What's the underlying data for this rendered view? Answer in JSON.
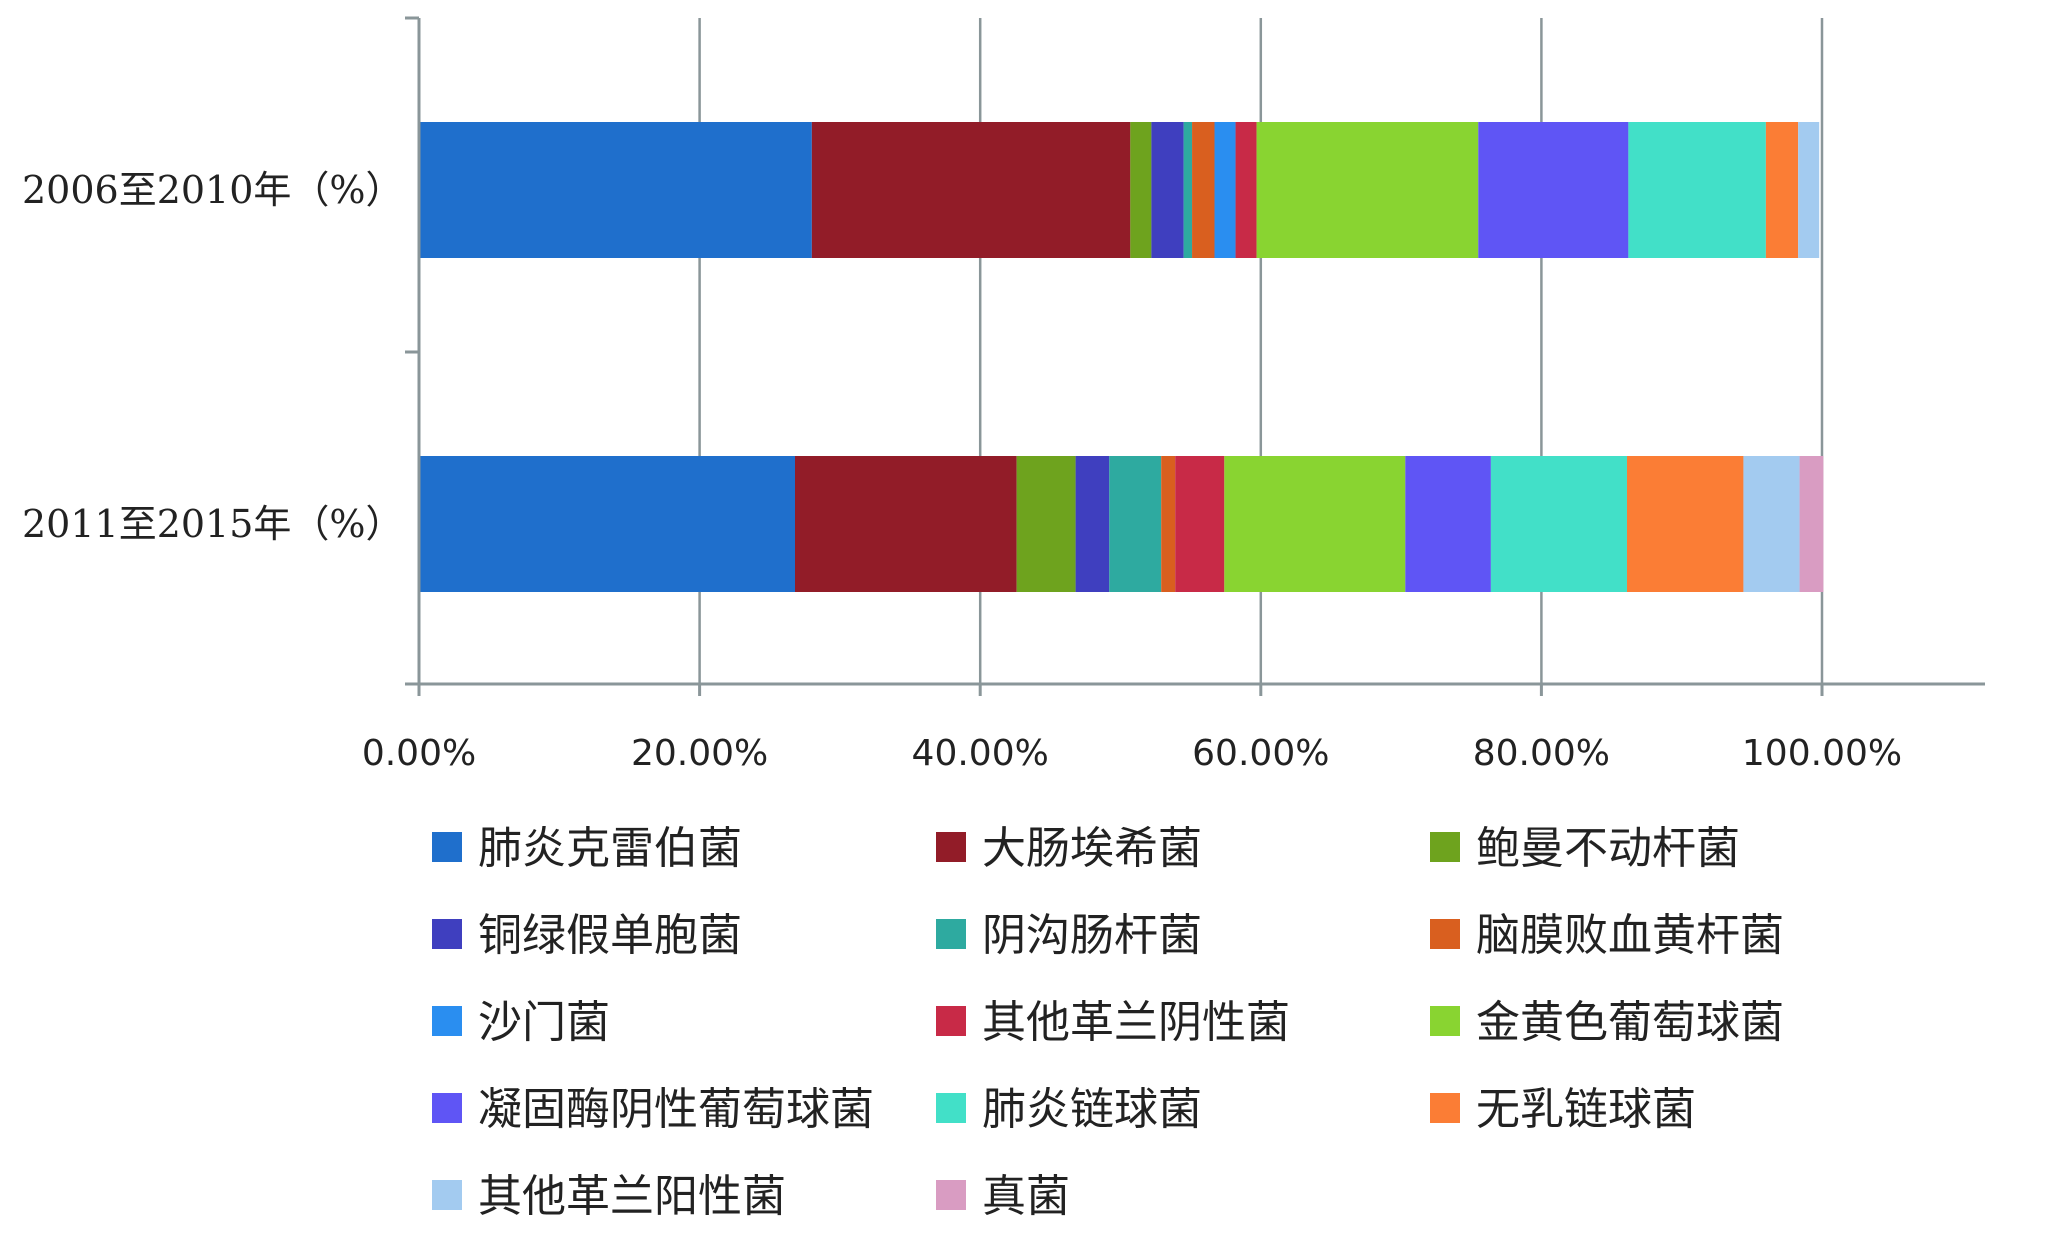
{
  "chart_data": {
    "type": "bar",
    "orientation": "horizontal",
    "stacked": "percent",
    "categories": [
      "2006至2010年（%）",
      "2011至2015年（%）"
    ],
    "xlim": [
      0,
      100
    ],
    "xticks": [
      "0.00%",
      "20.00%",
      "40.00%",
      "60.00%",
      "80.00%",
      "100.00%"
    ],
    "grid": "vertical",
    "legend_position": "bottom",
    "series": [
      {
        "name": "肺炎克雷伯菌",
        "color": "#1f6fcc",
        "values": [
          28.0,
          26.8
        ]
      },
      {
        "name": "大肠埃希菌",
        "color": "#921c28",
        "values": [
          22.7,
          15.8
        ]
      },
      {
        "name": "鲍曼不动杆菌",
        "color": "#6ea31e",
        "values": [
          1.5,
          4.2
        ]
      },
      {
        "name": "铜绿假单胞菌",
        "color": "#3f3fbf",
        "values": [
          2.3,
          2.4
        ]
      },
      {
        "name": "阴沟肠杆菌",
        "color": "#2eaaa0",
        "values": [
          0.6,
          3.7
        ]
      },
      {
        "name": "脑膜败血黄杆菌",
        "color": "#d95f1f",
        "values": [
          1.6,
          1.0
        ]
      },
      {
        "name": "沙门菌",
        "color": "#2a8ef0",
        "values": [
          1.5,
          0.0
        ]
      },
      {
        "name": "其他革兰阴性菌",
        "color": "#c82a47",
        "values": [
          1.5,
          3.5
        ]
      },
      {
        "name": "金黄色葡萄球菌",
        "color": "#89d431",
        "values": [
          15.8,
          12.9
        ]
      },
      {
        "name": "凝固酶阴性葡萄球菌",
        "color": "#5f55f5",
        "values": [
          10.7,
          6.1
        ]
      },
      {
        "name": "肺炎链球菌",
        "color": "#42e0c8",
        "values": [
          9.8,
          9.7
        ]
      },
      {
        "name": "无乳链球菌",
        "color": "#fb7d35",
        "values": [
          2.3,
          8.3
        ]
      },
      {
        "name": "其他革兰阳性菌",
        "color": "#a3cbf0",
        "values": [
          1.5,
          4.0
        ]
      },
      {
        "name": "真菌",
        "color": "#d99cc2",
        "values": [
          0.0,
          1.7
        ]
      }
    ]
  }
}
